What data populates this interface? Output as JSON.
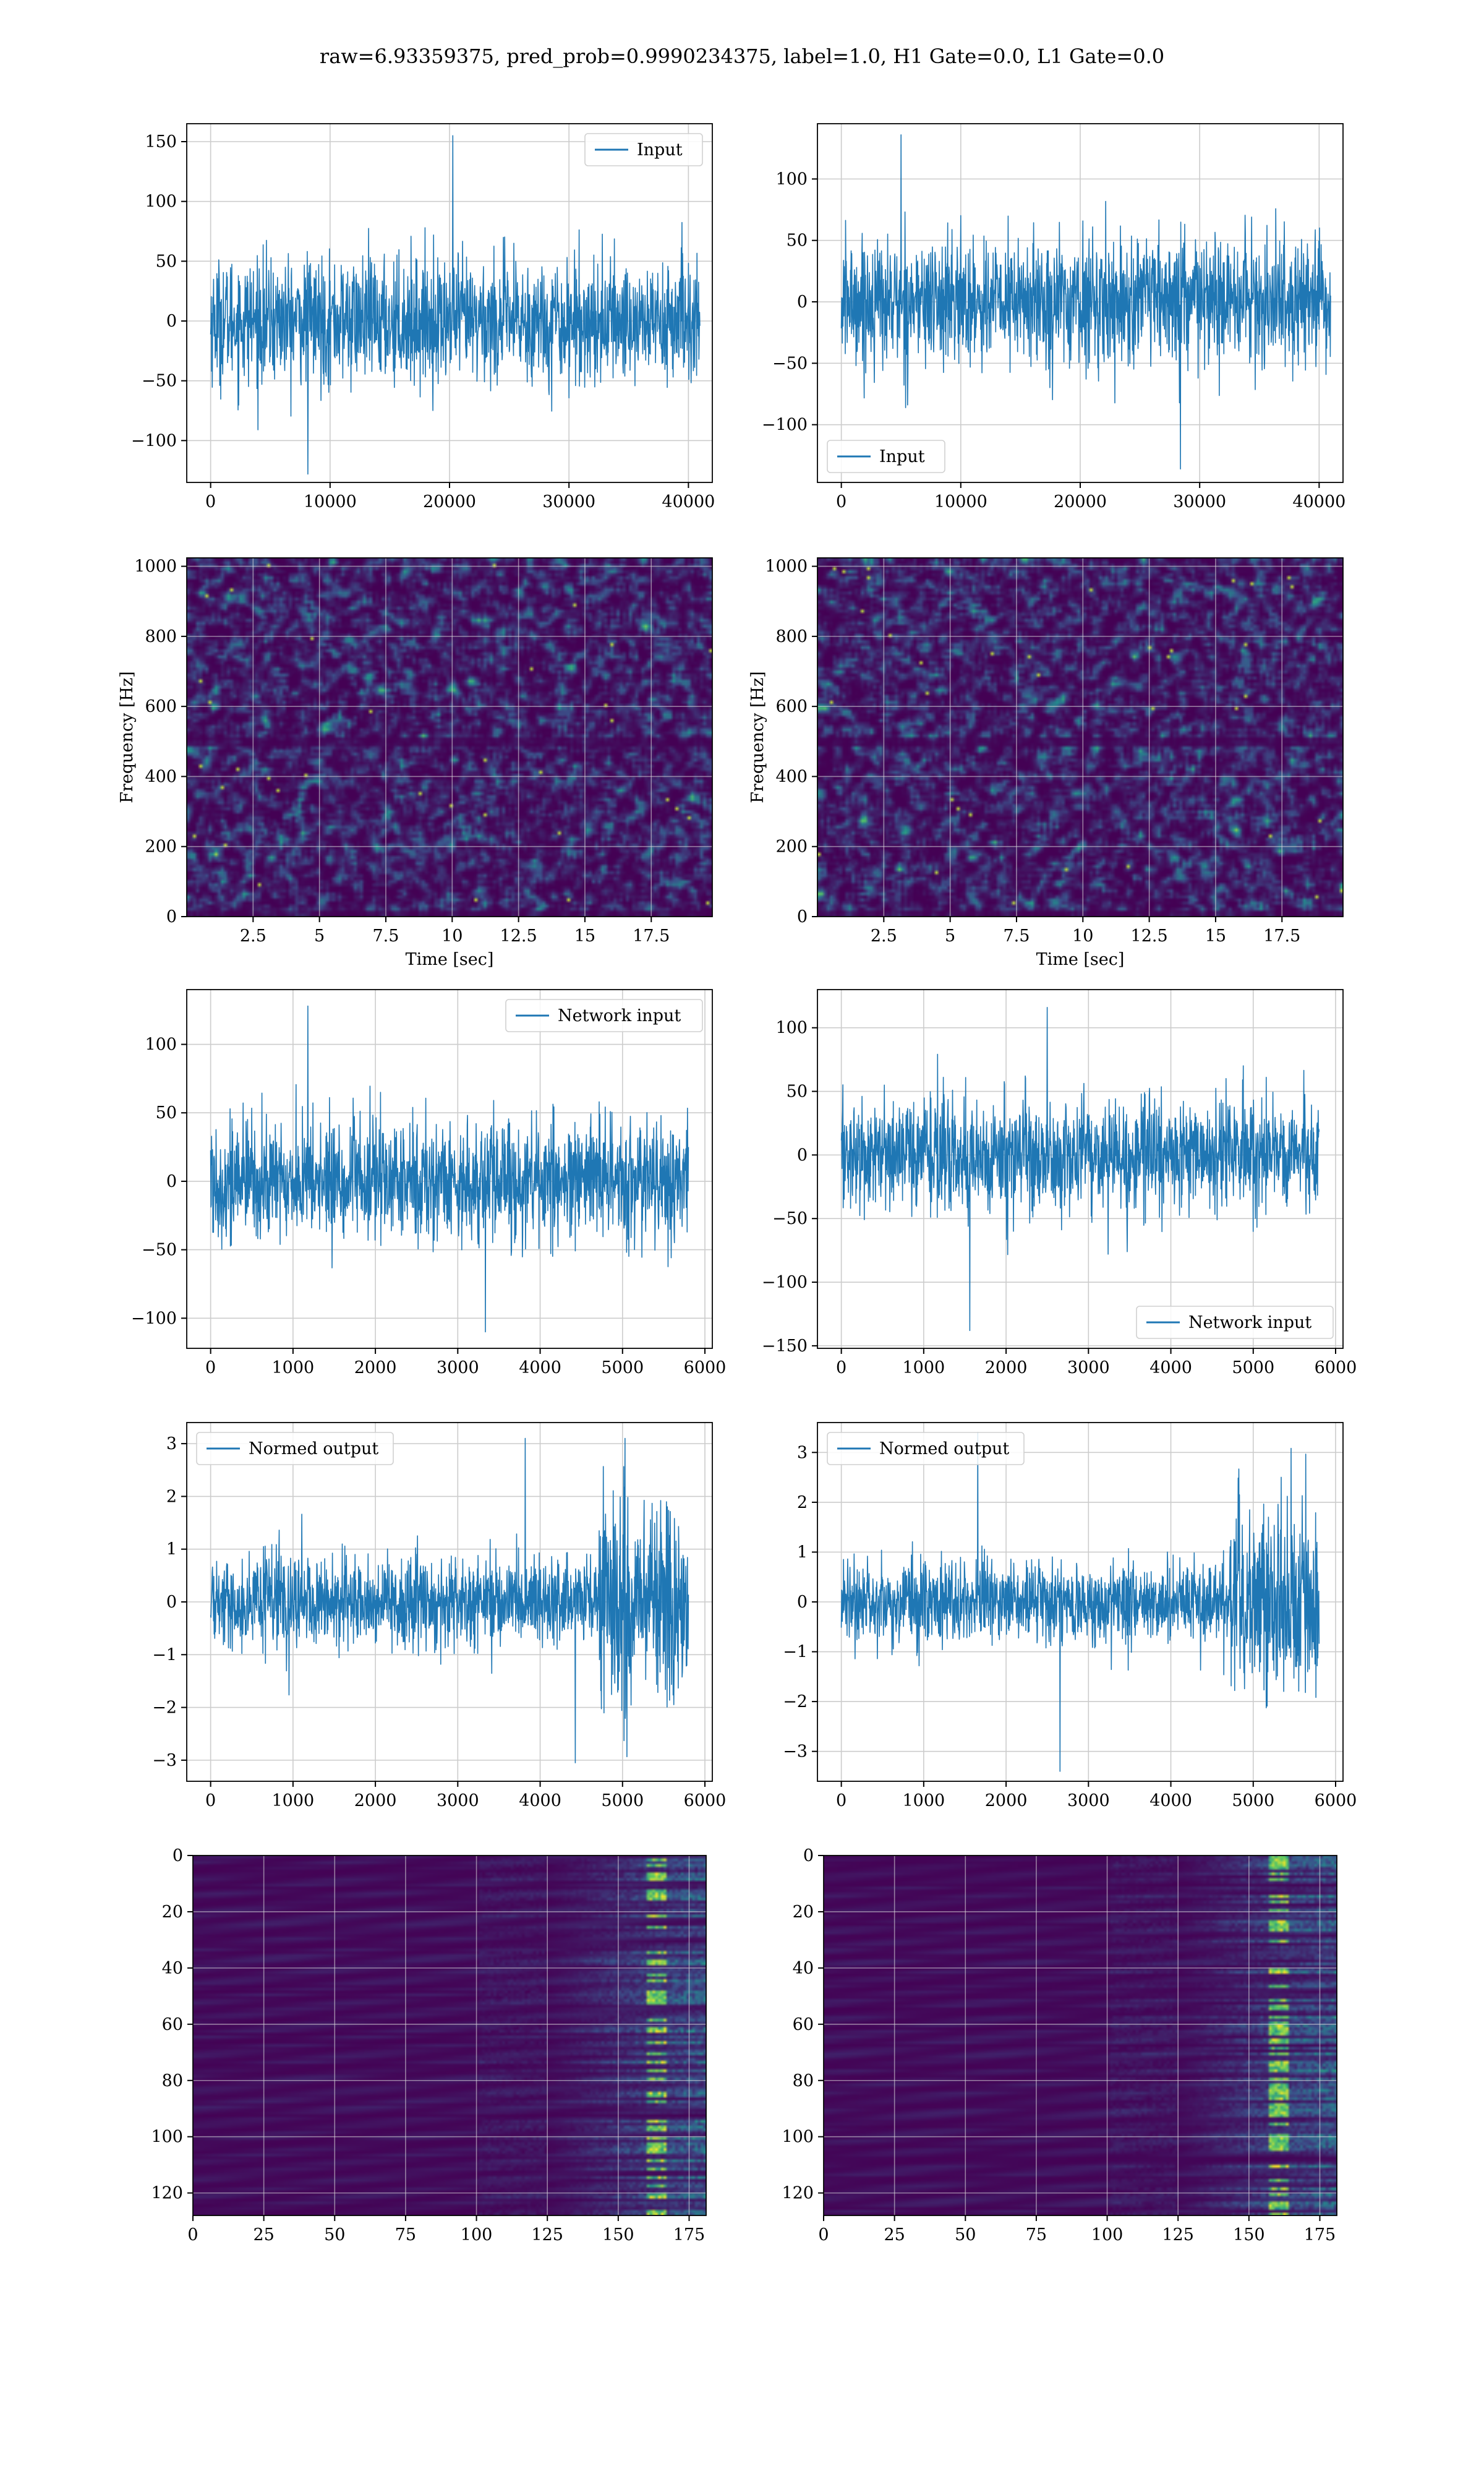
{
  "suptitle": "raw=6.93359375, pred_prob=0.9990234375, label=1.0, H1 Gate=0.0, L1 Gate=0.0",
  "colors": {
    "series": "#1f77b4",
    "grid": "#cccccc",
    "viridis_dark": "#440154",
    "viridis_mid": "#21918c",
    "viridis_bright": "#fde725"
  },
  "chart_data": [
    {
      "id": "input-h1",
      "type": "line",
      "series": [
        {
          "name": "Input"
        }
      ],
      "legend": "upper right",
      "xlim": [
        -2000,
        42000
      ],
      "ylim": [
        -135,
        165
      ],
      "xticks": [
        0,
        10000,
        20000,
        30000,
        40000
      ],
      "yticks": [
        -100,
        -50,
        0,
        50,
        100,
        150
      ],
      "x_range": [
        0,
        40960
      ],
      "sigma": 26,
      "peak": 155,
      "trough": -128,
      "grid": true
    },
    {
      "id": "input-l1",
      "type": "line",
      "series": [
        {
          "name": "Input"
        }
      ],
      "legend": "lower left",
      "xlim": [
        -2000,
        42000
      ],
      "ylim": [
        -147,
        145
      ],
      "xticks": [
        0,
        10000,
        20000,
        30000,
        40000
      ],
      "yticks": [
        -100,
        -50,
        0,
        50,
        100
      ],
      "x_range": [
        0,
        40960
      ],
      "sigma": 26,
      "peak": 136,
      "trough": -136,
      "grid": true
    },
    {
      "id": "spectrogram-h1",
      "type": "heatmap",
      "xlabel": "Time [sec]",
      "ylabel": "Frequency [Hz]",
      "xlim": [
        0,
        19.8
      ],
      "ylim": [
        0,
        1024
      ],
      "xticks": [
        2.5,
        5.0,
        7.5,
        10.0,
        12.5,
        15.0,
        17.5
      ],
      "yticks": [
        0,
        200,
        400,
        600,
        800,
        1000
      ],
      "colormap": "viridis",
      "grid": true
    },
    {
      "id": "spectrogram-l1",
      "type": "heatmap",
      "xlabel": "Time [sec]",
      "ylabel": "Frequency [Hz]",
      "xlim": [
        0,
        19.8
      ],
      "ylim": [
        0,
        1024
      ],
      "xticks": [
        2.5,
        5.0,
        7.5,
        10.0,
        12.5,
        15.0,
        17.5
      ],
      "yticks": [
        0,
        200,
        400,
        600,
        800,
        1000
      ],
      "colormap": "viridis",
      "grid": true
    },
    {
      "id": "network-input-h1",
      "type": "line",
      "series": [
        {
          "name": "Network input"
        }
      ],
      "legend": "upper right",
      "xlim": [
        -290,
        6090
      ],
      "ylim": [
        -122,
        140
      ],
      "xticks": [
        0,
        1000,
        2000,
        3000,
        4000,
        5000,
        6000
      ],
      "yticks": [
        -100,
        -50,
        0,
        50,
        100
      ],
      "x_range": [
        0,
        5800
      ],
      "sigma": 22,
      "peak": 128,
      "trough": -110,
      "grid": true
    },
    {
      "id": "network-input-l1",
      "type": "line",
      "series": [
        {
          "name": "Network input"
        }
      ],
      "legend": "lower right",
      "xlim": [
        -290,
        6090
      ],
      "ylim": [
        -152,
        130
      ],
      "xticks": [
        0,
        1000,
        2000,
        3000,
        4000,
        5000,
        6000
      ],
      "yticks": [
        -150,
        -100,
        -50,
        0,
        50,
        100
      ],
      "x_range": [
        0,
        5800
      ],
      "sigma": 22,
      "peak": 116,
      "trough": -138,
      "grid": true
    },
    {
      "id": "normed-output-h1",
      "type": "line",
      "series": [
        {
          "name": "Normed output"
        }
      ],
      "legend": "upper left",
      "xlim": [
        -290,
        6090
      ],
      "ylim": [
        -3.4,
        3.4
      ],
      "xticks": [
        0,
        1000,
        2000,
        3000,
        4000,
        5000,
        6000
      ],
      "yticks": [
        -3,
        -2,
        -1,
        0,
        1,
        2,
        3
      ],
      "x_range": [
        0,
        5800
      ],
      "sigma": 0.42,
      "burst_start": 4700,
      "burst_sigma": 1.05,
      "peak": 3.1,
      "trough": -3.05,
      "grid": true
    },
    {
      "id": "normed-output-l1",
      "type": "line",
      "series": [
        {
          "name": "Normed output"
        }
      ],
      "legend": "upper left",
      "xlim": [
        -290,
        6090
      ],
      "ylim": [
        -3.6,
        3.6
      ],
      "xticks": [
        0,
        1000,
        2000,
        3000,
        4000,
        5000,
        6000
      ],
      "yticks": [
        -3,
        -2,
        -1,
        0,
        1,
        2,
        3
      ],
      "x_range": [
        0,
        5800
      ],
      "sigma": 0.42,
      "burst_start": 4700,
      "burst_sigma": 1.0,
      "peak": 3.4,
      "trough": -3.4,
      "grid": true
    },
    {
      "id": "feature-map-h1",
      "type": "heatmap",
      "xlim": [
        0,
        181
      ],
      "ylim": [
        128,
        0
      ],
      "xticks": [
        0,
        25,
        50,
        75,
        100,
        125,
        150,
        175
      ],
      "yticks": [
        0,
        20,
        40,
        60,
        80,
        100,
        120
      ],
      "activity_start": 125,
      "hot_col": 163,
      "colormap": "viridis",
      "grid": true
    },
    {
      "id": "feature-map-l1",
      "type": "heatmap",
      "xlim": [
        0,
        181
      ],
      "ylim": [
        128,
        0
      ],
      "xticks": [
        0,
        25,
        50,
        75,
        100,
        125,
        150,
        175
      ],
      "yticks": [
        0,
        20,
        40,
        60,
        80,
        100,
        120
      ],
      "activity_start": 125,
      "hot_col": 160,
      "colormap": "viridis",
      "grid": true
    }
  ]
}
